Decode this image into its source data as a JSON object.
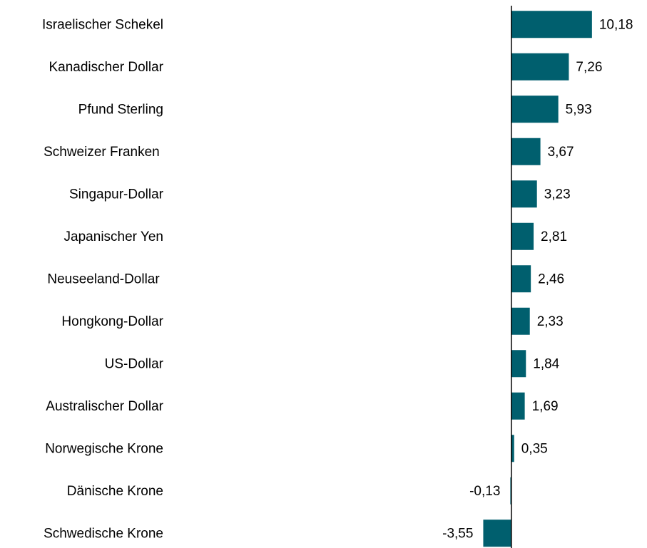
{
  "chart_data": {
    "type": "barh",
    "categories": [
      "Israelischer Schekel",
      "Kanadischer Dollar",
      "Pfund Sterling",
      "Schweizer Franken ",
      "Singapur-Dollar",
      "Japanischer Yen",
      "Neuseeland-Dollar ",
      "Hongkong-Dollar",
      "US-Dollar",
      "Australischer Dollar",
      "Norwegische Krone",
      "Dänische Krone",
      "Schwedische Krone"
    ],
    "values": [
      10.18,
      7.26,
      5.93,
      3.67,
      3.23,
      2.81,
      2.46,
      2.33,
      1.84,
      1.69,
      0.35,
      -0.13,
      -3.55
    ],
    "value_labels": [
      "10,18",
      "7,26",
      "5,93",
      "3,67",
      "3,23",
      "2,81",
      "2,46",
      "2,33",
      "1,84",
      "1,69",
      "0,35",
      "-0,13",
      "-3,55"
    ],
    "color": "#005f6e",
    "xlim": [
      -13.5,
      16.5
    ]
  }
}
